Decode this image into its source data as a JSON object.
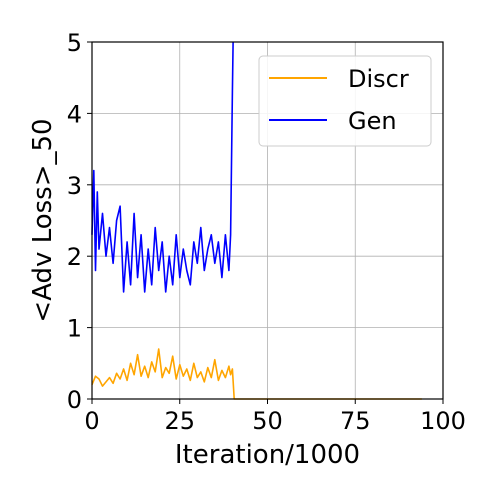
{
  "chart_data": {
    "type": "line",
    "xlabel": "Iteration/1000",
    "ylabel": "<Adv Loss>_50",
    "xlim": [
      0,
      100
    ],
    "ylim": [
      0,
      5
    ],
    "xticks": [
      "0",
      "25",
      "50",
      "75",
      "100"
    ],
    "yticks": [
      "0",
      "1",
      "2",
      "3",
      "4",
      "5"
    ],
    "grid": true,
    "legend_position": "top-right",
    "series": [
      {
        "name": "Discr",
        "color": "#ffa500",
        "x": [
          0,
          1,
          2,
          3,
          4,
          5,
          6,
          7,
          8,
          9,
          10,
          11,
          12,
          13,
          14,
          15,
          16,
          17,
          18,
          19,
          20,
          21,
          22,
          23,
          24,
          25,
          26,
          27,
          28,
          29,
          30,
          31,
          32,
          33,
          34,
          35,
          36,
          37,
          38,
          39,
          39.5,
          40,
          40.5,
          41,
          50,
          60,
          70,
          80,
          90,
          94
        ],
        "y": [
          0.2,
          0.32,
          0.28,
          0.18,
          0.24,
          0.3,
          0.22,
          0.36,
          0.28,
          0.42,
          0.26,
          0.5,
          0.34,
          0.62,
          0.32,
          0.46,
          0.3,
          0.52,
          0.38,
          0.7,
          0.3,
          0.44,
          0.36,
          0.6,
          0.28,
          0.48,
          0.32,
          0.42,
          0.26,
          0.5,
          0.3,
          0.38,
          0.24,
          0.44,
          0.3,
          0.55,
          0.26,
          0.4,
          0.3,
          0.46,
          0.34,
          0.42,
          0.0,
          0.0,
          0.0,
          0.0,
          0.0,
          0.0,
          0.0,
          0.0
        ]
      },
      {
        "name": "Gen",
        "color": "#0000ff",
        "x": [
          0,
          0.5,
          1,
          1.5,
          2,
          3,
          4,
          5,
          6,
          7,
          8,
          9,
          10,
          11,
          12,
          13,
          14,
          15,
          16,
          17,
          18,
          19,
          20,
          21,
          22,
          23,
          24,
          25,
          26,
          27,
          28,
          29,
          30,
          31,
          32,
          33,
          34,
          35,
          36,
          37,
          38,
          39,
          39.5,
          40,
          40.2
        ],
        "y": [
          2.3,
          3.2,
          1.8,
          2.9,
          2.1,
          2.6,
          2.0,
          2.4,
          1.9,
          2.5,
          2.7,
          1.5,
          2.2,
          1.6,
          2.6,
          1.7,
          2.3,
          1.5,
          2.1,
          1.6,
          2.4,
          1.8,
          2.2,
          1.5,
          2.0,
          1.6,
          2.3,
          1.7,
          2.1,
          1.8,
          1.6,
          2.2,
          1.9,
          2.4,
          1.8,
          2.1,
          2.3,
          1.9,
          2.2,
          1.7,
          2.3,
          1.8,
          2.3,
          4.3,
          5.0
        ]
      }
    ]
  }
}
